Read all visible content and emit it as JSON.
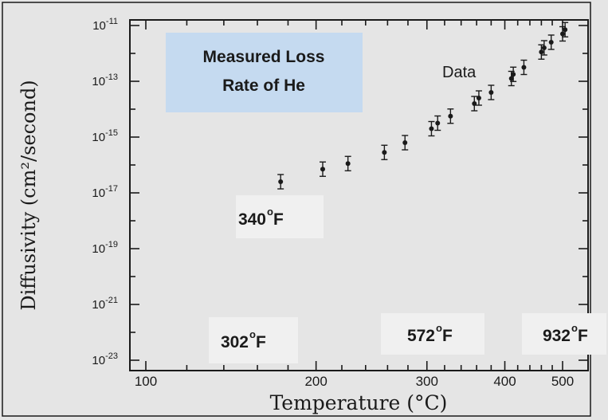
{
  "chart_data": {
    "type": "scatter",
    "title": "",
    "xlabel": "Temperature (°C)",
    "ylabel": "Diffusivity (cm²/second)",
    "xscale": "reciprocal",
    "yscale": "log",
    "x_ticks": [
      {
        "value": 100,
        "label": "100"
      },
      {
        "value": 200,
        "label": "200"
      },
      {
        "value": 300,
        "label": "300"
      },
      {
        "value": 400,
        "label": "400"
      },
      {
        "value": 500,
        "label": "500"
      }
    ],
    "y_ticks": [
      {
        "exp": -11,
        "base": "10",
        "sup": "-11"
      },
      {
        "exp": -13,
        "base": "10",
        "sup": "-13"
      },
      {
        "exp": -15,
        "base": "10",
        "sup": "-15"
      },
      {
        "exp": -17,
        "base": "10",
        "sup": "-17"
      },
      {
        "exp": -19,
        "base": "10",
        "sup": "-19"
      },
      {
        "exp": -21,
        "base": "10",
        "sup": "-21"
      },
      {
        "exp": -23,
        "base": "10",
        "sup": "-23"
      }
    ],
    "xlim": [
      90,
      530
    ],
    "ylim_exp": [
      -23.3,
      -10.8
    ],
    "grid": false,
    "series": [
      {
        "name": "Data",
        "points": [
          {
            "x": 175,
            "log_y": -16.6
          },
          {
            "x": 205,
            "log_y": -16.15
          },
          {
            "x": 225,
            "log_y": -15.95
          },
          {
            "x": 257,
            "log_y": -15.55
          },
          {
            "x": 277,
            "log_y": -15.2
          },
          {
            "x": 305,
            "log_y": -14.7
          },
          {
            "x": 312,
            "log_y": -14.5
          },
          {
            "x": 327,
            "log_y": -14.25
          },
          {
            "x": 357,
            "log_y": -13.8
          },
          {
            "x": 363,
            "log_y": -13.6
          },
          {
            "x": 380,
            "log_y": -13.4
          },
          {
            "x": 410,
            "log_y": -12.9
          },
          {
            "x": 413,
            "log_y": -12.75
          },
          {
            "x": 430,
            "log_y": -12.5
          },
          {
            "x": 460,
            "log_y": -11.95
          },
          {
            "x": 465,
            "log_y": -11.8
          },
          {
            "x": 478,
            "log_y": -11.6
          },
          {
            "x": 500,
            "log_y": -11.3
          },
          {
            "x": 505,
            "log_y": -11.15
          }
        ]
      }
    ],
    "annotations": {
      "title_box": [
        "Measured Loss",
        "Rate of He"
      ],
      "data_label": "Data",
      "temps": [
        {
          "num": "340",
          "deg": "o",
          "unit": "F"
        },
        {
          "num": "302",
          "deg": "o",
          "unit": "F"
        },
        {
          "num": "572",
          "deg": "o",
          "unit": "F"
        },
        {
          "num": "932",
          "deg": "o",
          "unit": "F"
        }
      ]
    }
  },
  "colors": {
    "background": "#e5e5e5",
    "title_box": "#c5daf0",
    "label_box": "#f0f0f0",
    "ink": "#1a1a1a"
  }
}
